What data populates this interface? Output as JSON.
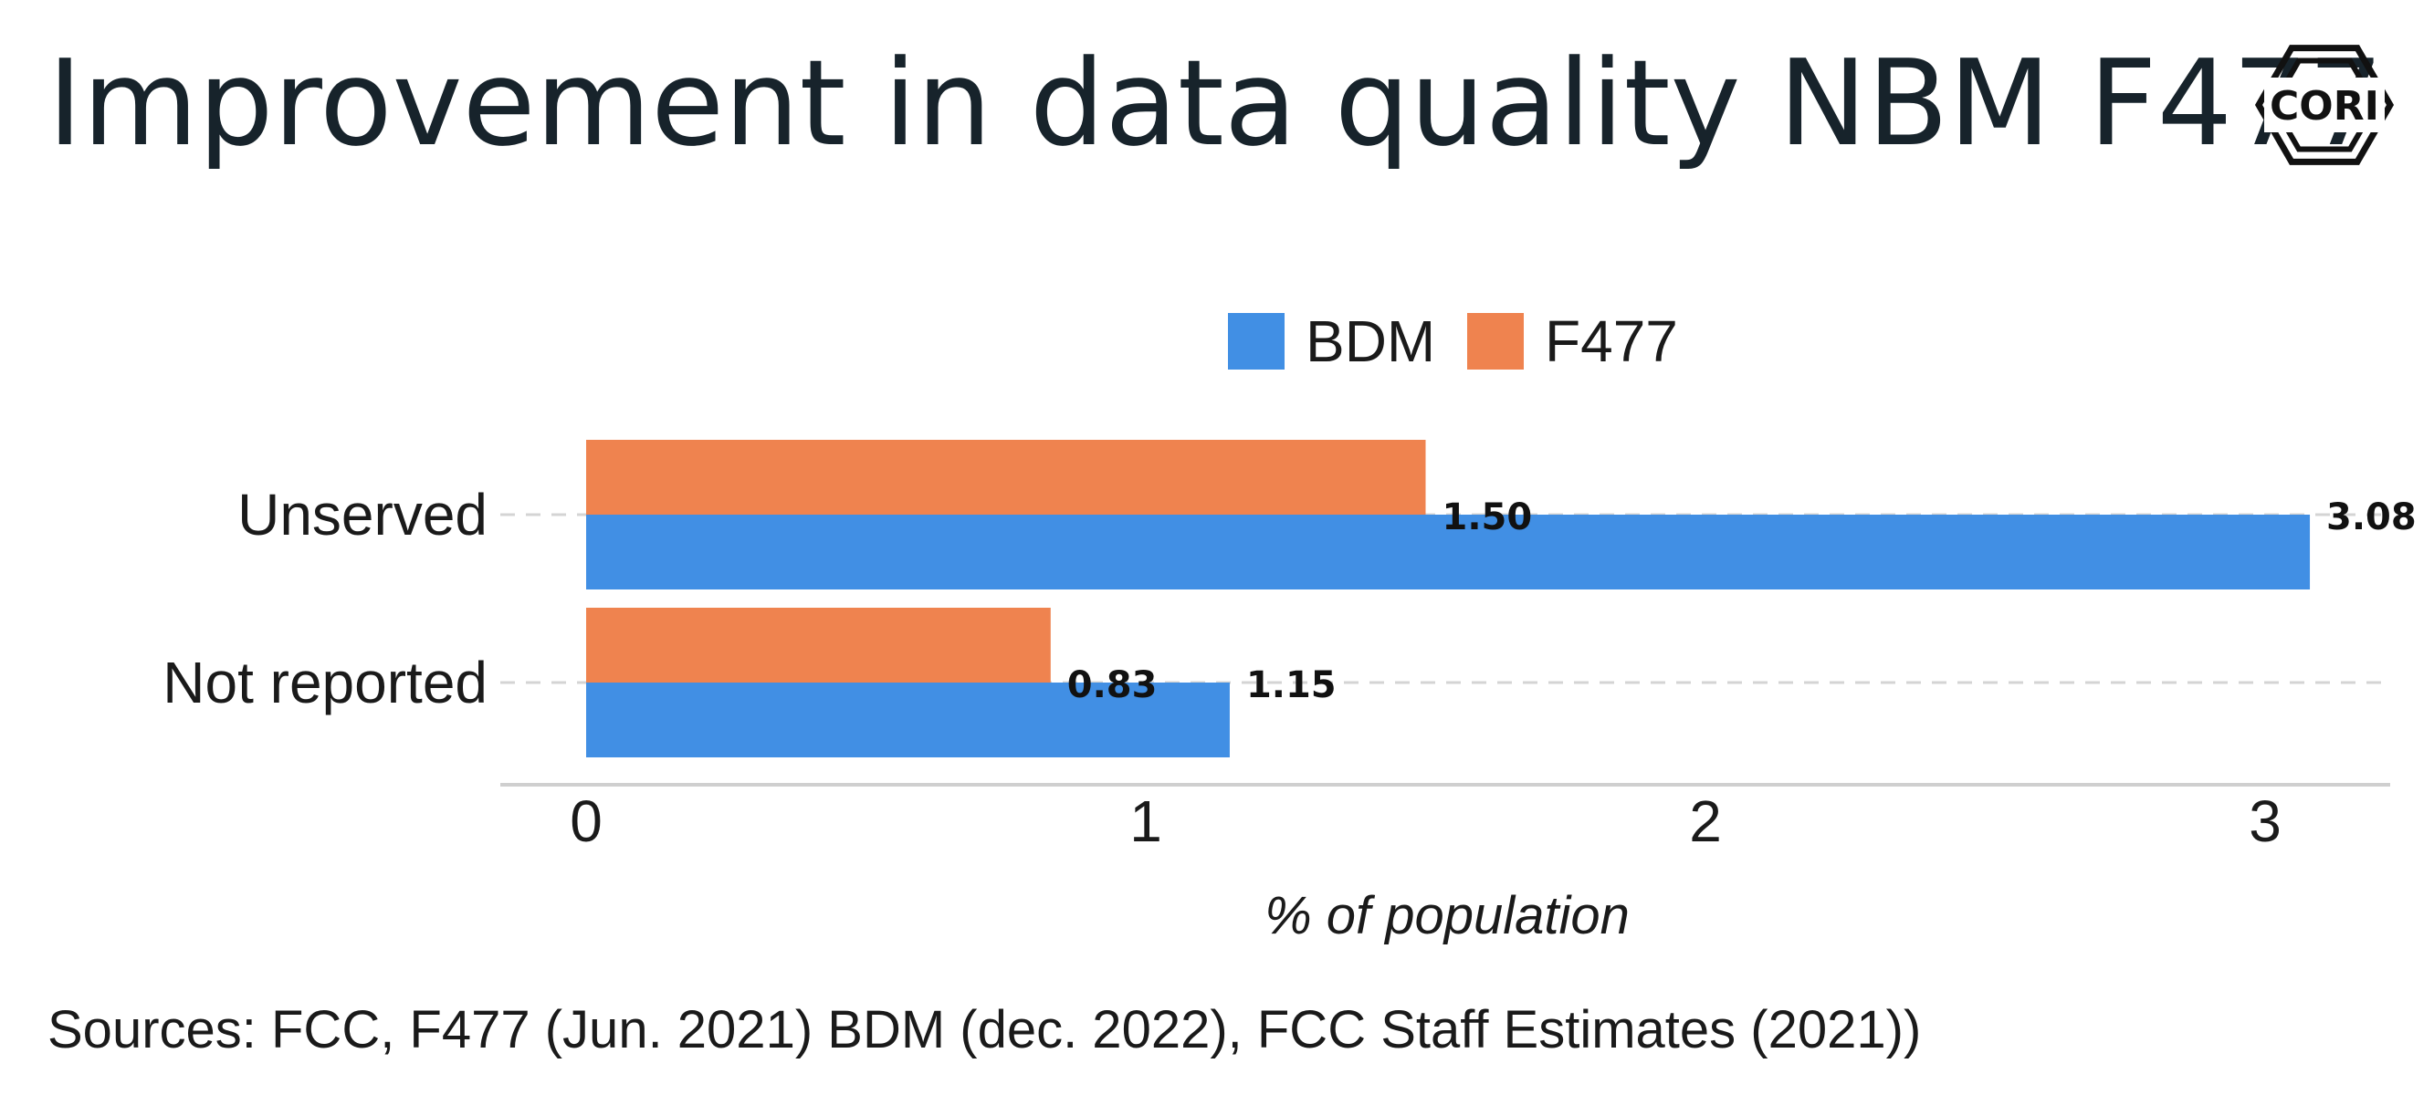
{
  "title": "Improvement in data quality NBM F477",
  "source": "Sources: FCC, F477 (Jun. 2021) BDM (dec. 2022), FCC Staff Estimates (2021))",
  "logo": {
    "text": "CORI"
  },
  "colors": {
    "BDM": "#418fe4",
    "F477": "#ef834f",
    "grid": "#d4d4d4",
    "axis": "#cfcfcf",
    "text": "#17232b"
  },
  "chart_data": {
    "type": "bar",
    "orientation": "horizontal",
    "categories": [
      "Unserved",
      "Not reported"
    ],
    "series": [
      {
        "name": "BDM",
        "values": [
          3.08,
          1.15
        ],
        "labels": [
          "3.08",
          "1.15"
        ]
      },
      {
        "name": "F477",
        "values": [
          1.5,
          0.83
        ],
        "labels": [
          "1.50",
          "0.83"
        ]
      }
    ],
    "xlabel": "% of population",
    "ylabel": "",
    "xlim": [
      0,
      3.2
    ],
    "xticks": [
      0,
      1,
      2,
      3
    ],
    "xtick_labels": [
      "0",
      "1",
      "2",
      "3"
    ],
    "legend_position": "top",
    "grid": "horizontal dashed"
  }
}
